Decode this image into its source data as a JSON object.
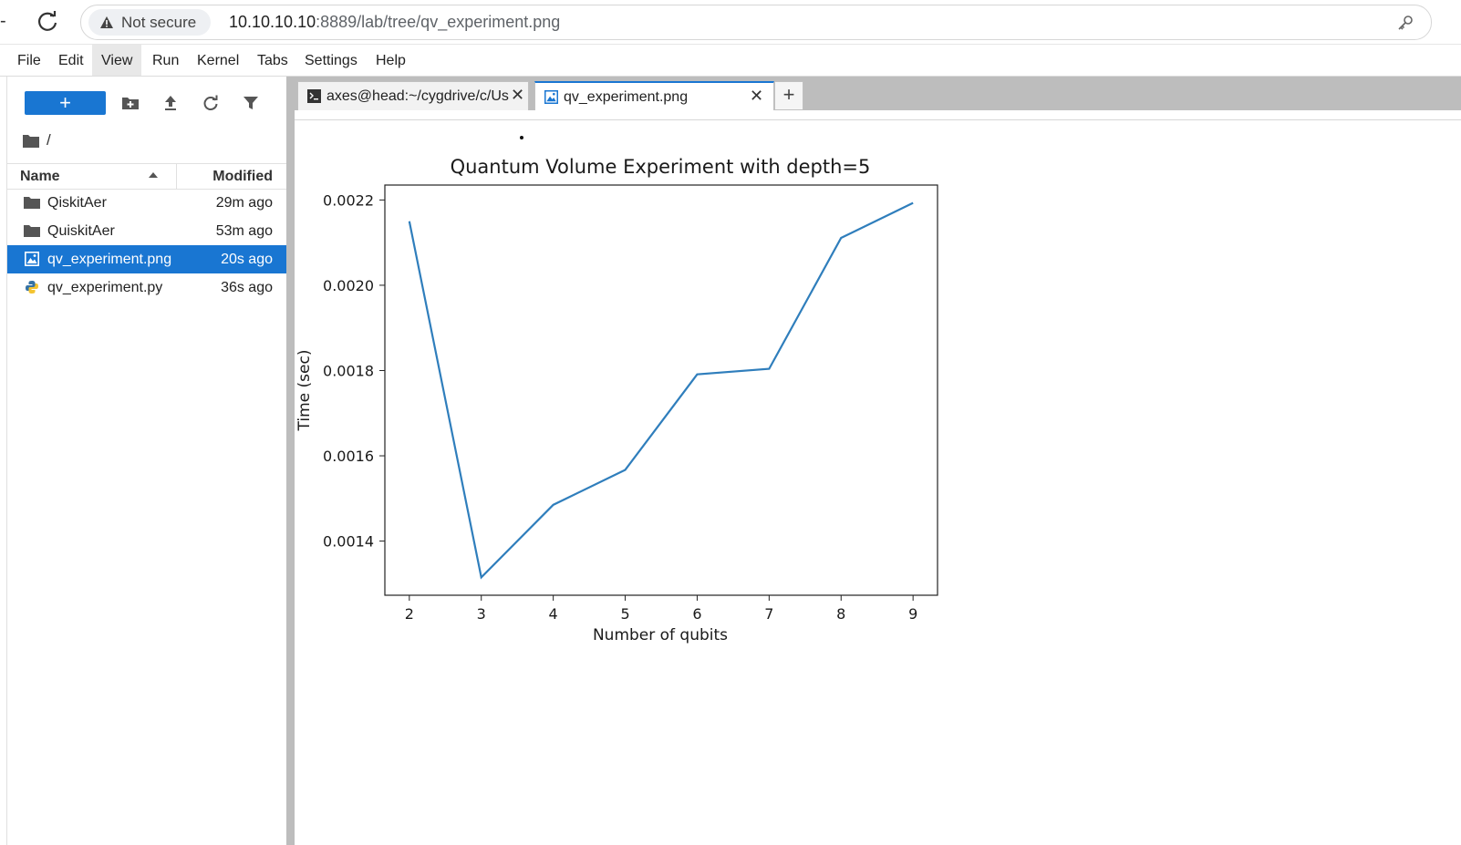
{
  "browser": {
    "security_label": "Not secure",
    "url_host": "10.10.10.10",
    "url_rest": ":8889/lab/tree/qv_experiment.png"
  },
  "menubar": {
    "items": [
      "File",
      "Edit",
      "View",
      "Run",
      "Kernel",
      "Tabs",
      "Settings",
      "Help"
    ],
    "active": "View"
  },
  "filebrowser": {
    "new_label": "+",
    "breadcrumb": "/",
    "columns": {
      "name": "Name",
      "modified": "Modified"
    },
    "files": [
      {
        "name": "QiskitAer",
        "modified": "29m ago",
        "icon": "folder-icon"
      },
      {
        "name": "QuiskitAer",
        "modified": "53m ago",
        "icon": "folder-icon"
      },
      {
        "name": "qv_experiment.png",
        "modified": "20s ago",
        "icon": "image-file-icon",
        "selected": true
      },
      {
        "name": "qv_experiment.py",
        "modified": "36s ago",
        "icon": "python-file-icon"
      }
    ]
  },
  "tabs": [
    {
      "label": "axes@head:~/cygdrive/c/Use",
      "icon": "terminal-icon"
    },
    {
      "label": "qv_experiment.png",
      "icon": "image-file-icon",
      "current": true
    }
  ],
  "colors": {
    "accent": "#1976d2",
    "series": "#2f7ebc"
  },
  "chart_data": {
    "type": "line",
    "title": "Quantum Volume Experiment with depth=5",
    "xlabel": "Number of qubits",
    "ylabel": "Time (sec)",
    "x": [
      2,
      3,
      4,
      5,
      6,
      7,
      8,
      9
    ],
    "y": [
      0.00215,
      0.001315,
      0.001485,
      0.001567,
      0.001791,
      0.001804,
      0.002111,
      0.002193
    ],
    "xticks": [
      "2",
      "3",
      "4",
      "5",
      "6",
      "7",
      "8",
      "9"
    ],
    "yticks": [
      "0.0014",
      "0.0016",
      "0.0018",
      "0.0020",
      "0.0022"
    ],
    "ytick_values": [
      0.0014,
      0.0016,
      0.0018,
      0.002,
      0.0022
    ],
    "xlim": [
      1.66,
      9.34
    ],
    "ylim": [
      0.001273,
      0.002235
    ],
    "grid": false
  }
}
